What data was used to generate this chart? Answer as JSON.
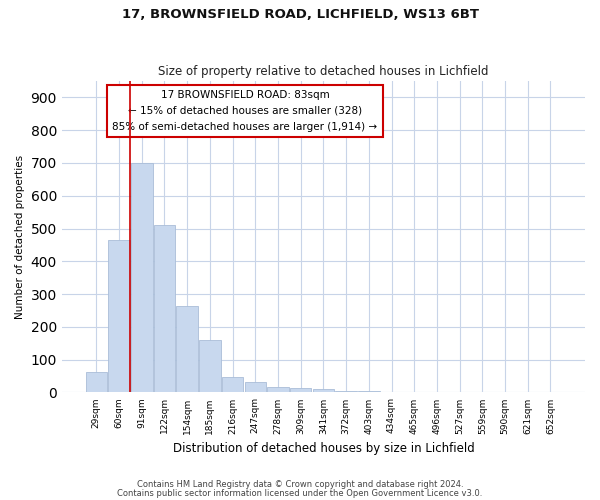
{
  "title1": "17, BROWNSFIELD ROAD, LICHFIELD, WS13 6BT",
  "title2": "Size of property relative to detached houses in Lichfield",
  "xlabel": "Distribution of detached houses by size in Lichfield",
  "ylabel": "Number of detached properties",
  "annotation_line1": "17 BROWNSFIELD ROAD: 83sqm",
  "annotation_line2": "← 15% of detached houses are smaller (328)",
  "annotation_line3": "85% of semi-detached houses are larger (1,914) →",
  "footer1": "Contains HM Land Registry data © Crown copyright and database right 2024.",
  "footer2": "Contains public sector information licensed under the Open Government Licence v3.0.",
  "bins": [
    "29sqm",
    "60sqm",
    "91sqm",
    "122sqm",
    "154sqm",
    "185sqm",
    "216sqm",
    "247sqm",
    "278sqm",
    "309sqm",
    "341sqm",
    "372sqm",
    "403sqm",
    "434sqm",
    "465sqm",
    "496sqm",
    "527sqm",
    "559sqm",
    "590sqm",
    "621sqm",
    "652sqm"
  ],
  "values": [
    63,
    465,
    700,
    512,
    265,
    160,
    47,
    32,
    18,
    14,
    10,
    5,
    4,
    2,
    0,
    0,
    0,
    0,
    0,
    0,
    0
  ],
  "bar_color": "#c8d8ee",
  "bar_edge_color": "#aabdd8",
  "property_line_x": 1.5,
  "background_color": "#ffffff",
  "plot_bg_color": "#ffffff",
  "grid_color": "#c8d4e8",
  "annotation_box_color": "#ffffff",
  "annotation_box_edge": "#cc0000",
  "property_line_color": "#cc0000",
  "ylim": [
    0,
    950
  ],
  "yticks": [
    0,
    100,
    200,
    300,
    400,
    500,
    600,
    700,
    800,
    900
  ]
}
